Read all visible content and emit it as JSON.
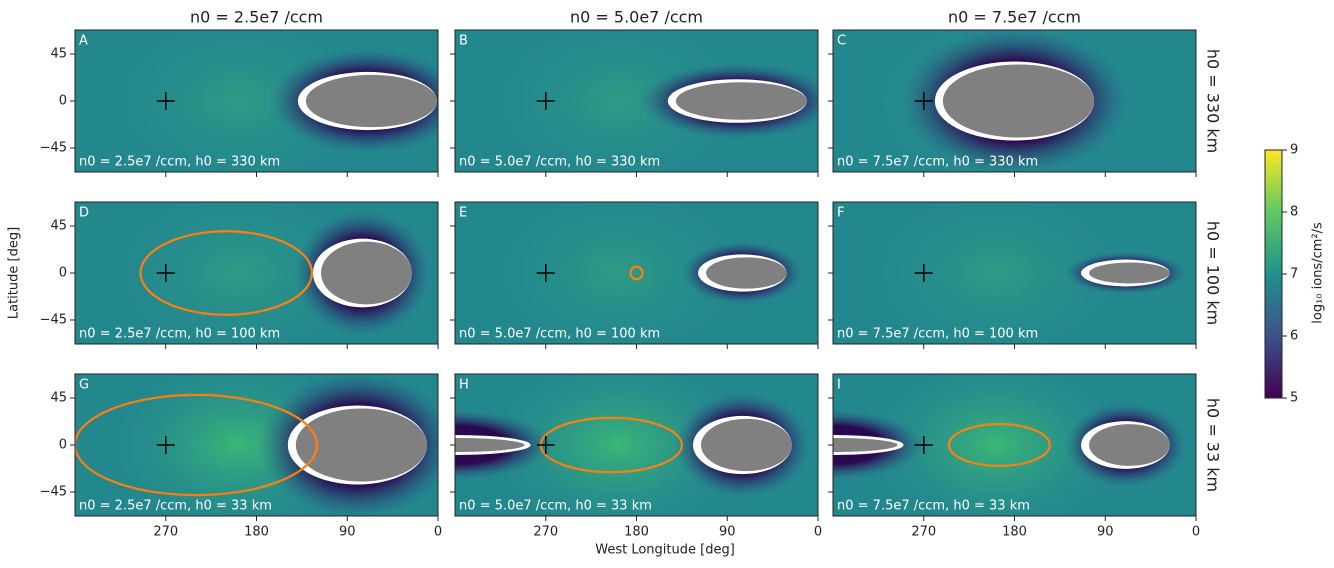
{
  "chart_data": {
    "type": "heatmap",
    "column_titles": [
      "n0 = 2.5e7 /ccm",
      "n0 = 5.0e7 /ccm",
      "n0 = 7.5e7 /ccm"
    ],
    "row_titles": [
      "h0 = 330 km",
      "h0 = 100 km",
      "h0 = 33 km"
    ],
    "xlabel": "West Longitude [deg]",
    "ylabel": "Latitude [deg]",
    "xlim": [
      360,
      0
    ],
    "ylim": [
      -68,
      68
    ],
    "xticks": [
      270,
      180,
      90,
      0
    ],
    "yticks": [
      45,
      0,
      {
        "value": -45,
        "label": "−45"
      }
    ],
    "panels": [
      {
        "label": "A",
        "annotation": "n0 = 2.5e7 /ccm, h0 = 330 km"
      },
      {
        "label": "B",
        "annotation": "n0 = 5.0e7 /ccm, h0 = 330 km"
      },
      {
        "label": "C",
        "annotation": "n0 = 7.5e7 /ccm, h0 = 330 km"
      },
      {
        "label": "D",
        "annotation": "n0 = 2.5e7 /ccm, h0 = 100 km"
      },
      {
        "label": "E",
        "annotation": "n0 = 5.0e7 /ccm, h0 = 100 km"
      },
      {
        "label": "F",
        "annotation": "n0 = 7.5e7 /ccm, h0 = 100 km"
      },
      {
        "label": "G",
        "annotation": "n0 = 2.5e7 /ccm, h0 = 33 km"
      },
      {
        "label": "H",
        "annotation": "n0 = 5.0e7 /ccm, h0 = 33 km"
      },
      {
        "label": "I",
        "annotation": "n0 = 7.5e7 /ccm, h0 = 33 km"
      }
    ],
    "colorbar": {
      "label": "log₁₀ ions/cm²/s",
      "lim": [
        5,
        9
      ],
      "ticks": [
        5,
        6,
        7,
        8,
        9
      ]
    }
  }
}
